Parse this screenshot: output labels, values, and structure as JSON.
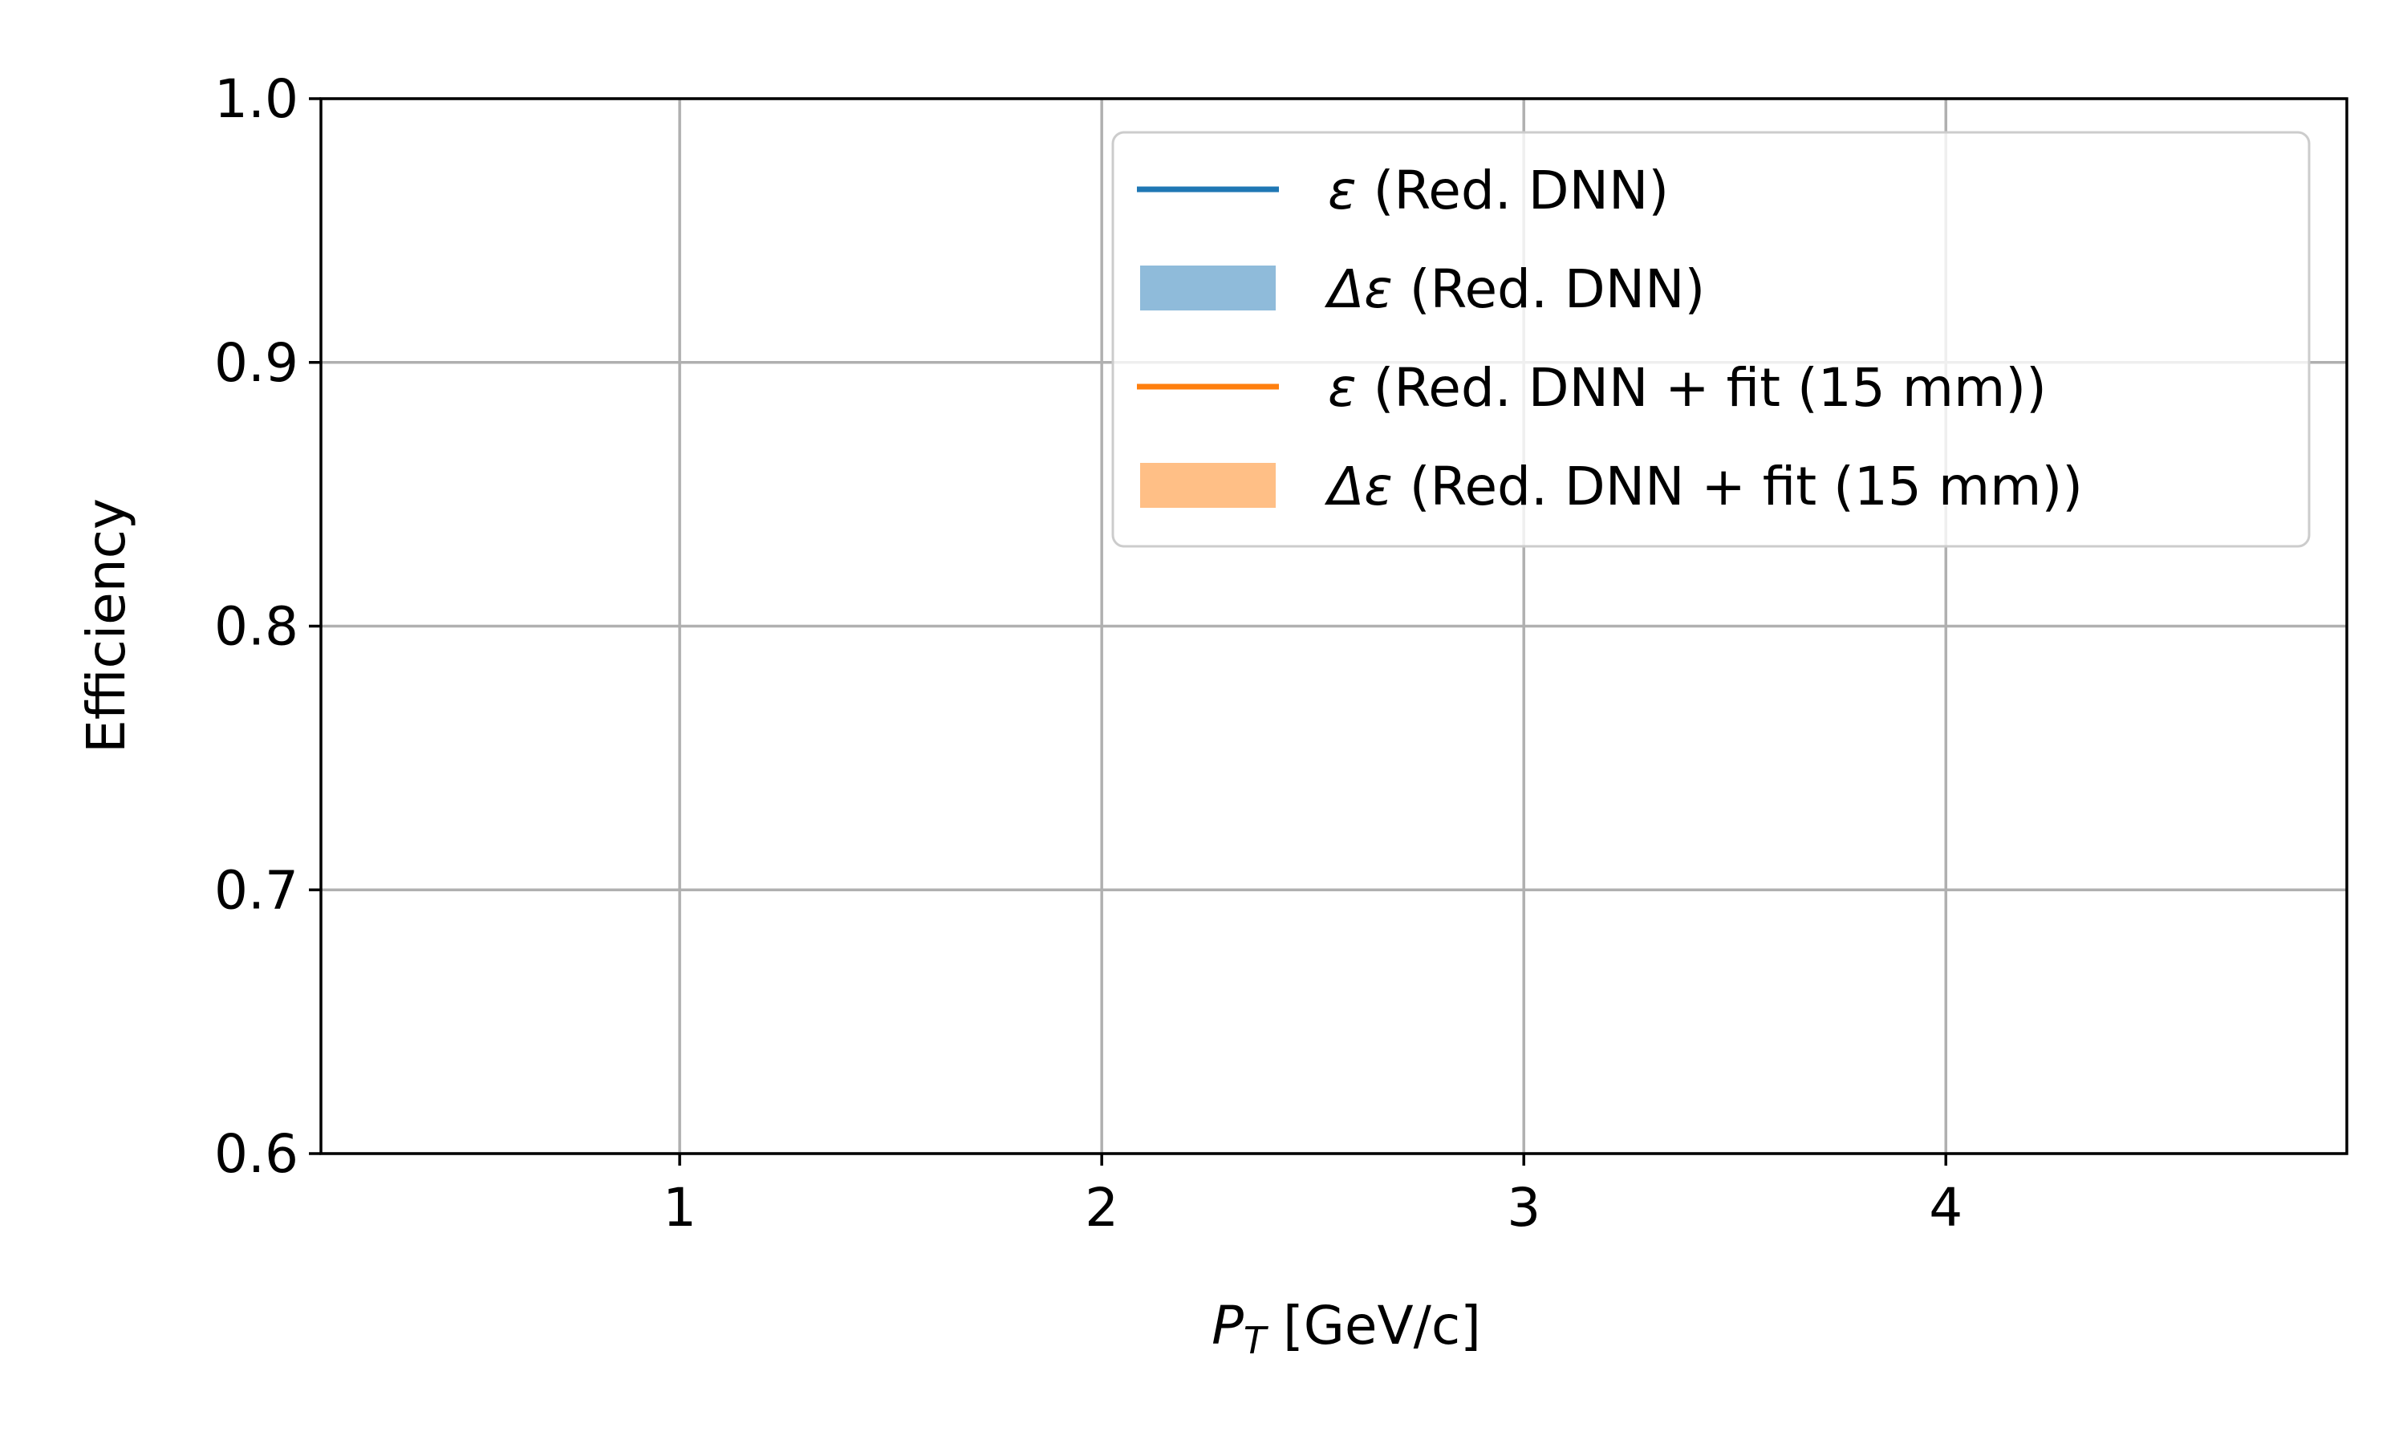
{
  "chart_data": {
    "type": "line",
    "title": "",
    "xlabel": {
      "var": "P",
      "sub": "T",
      "unit": " [GeV/c]"
    },
    "ylabel": "Efficiency",
    "xlim": [
      0.15,
      4.95
    ],
    "ylim": [
      0.6,
      1.0
    ],
    "x_ticks": [
      1,
      2,
      3,
      4
    ],
    "x_tick_labels": [
      "1",
      "2",
      "3",
      "4"
    ],
    "y_ticks": [
      0.6,
      0.7,
      0.8,
      0.9,
      1.0
    ],
    "y_tick_labels": [
      "0.6",
      "0.7",
      "0.8",
      "0.9",
      "1.0"
    ],
    "grid": true,
    "legend_position": "upper right",
    "series": [],
    "legend": [
      {
        "kind": "line",
        "symbol": "ε",
        "text": " (Red. DNN)",
        "color": "#1f77b4"
      },
      {
        "kind": "band",
        "symbol": "Δε",
        "text": " (Red. DNN)",
        "color": "#8fbbda"
      },
      {
        "kind": "line",
        "symbol": "ε",
        "text": " (Red. DNN + fit (15 mm))",
        "color": "#ff7f0e"
      },
      {
        "kind": "band",
        "symbol": "Δε",
        "text": " (Red. DNN + fit (15 mm))",
        "color": "#ffbf86"
      }
    ],
    "colors": {
      "grid": "#b0b0b0",
      "axes": "#000000",
      "legend_border": "#cccccc"
    }
  }
}
